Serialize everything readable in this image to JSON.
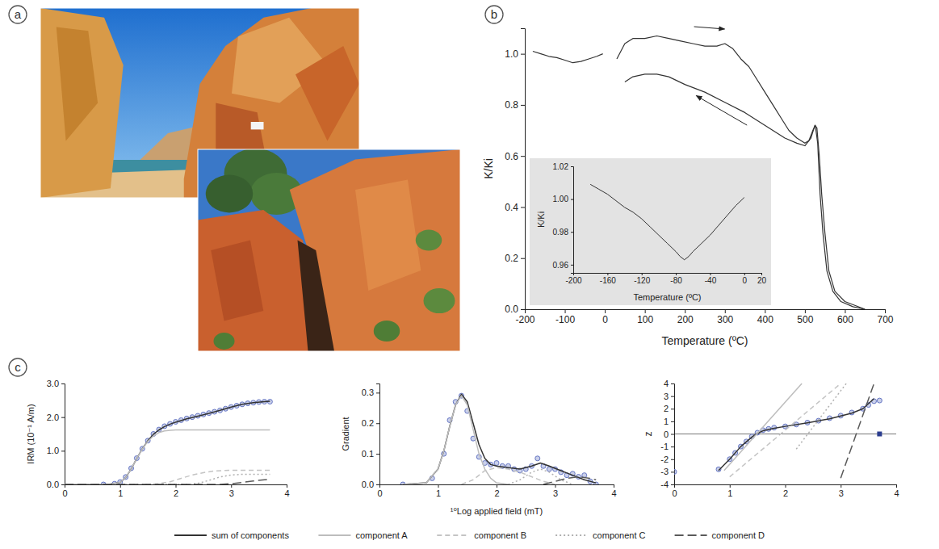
{
  "panel_labels": [
    "a",
    "b",
    "c"
  ],
  "chart_data": [
    {
      "type": "line",
      "x_label": "Temperature (ºC)",
      "y_label": "K/Ki",
      "xlim": [
        -200,
        700
      ],
      "xticks": [
        -200,
        -100,
        0,
        100,
        200,
        300,
        400,
        500,
        600,
        700
      ],
      "ylim": [
        0,
        1.1
      ],
      "yticks": [
        {
          "value": 0,
          "label": "0.0"
        },
        0.2,
        0.4,
        0.6,
        0.8,
        {
          "value": 1,
          "label": "1.0"
        }
      ],
      "series": [
        {
          "color": "#333333",
          "line_style": "solid",
          "x": [
            -180,
            -160,
            -140,
            -120,
            -100,
            -80,
            -60,
            -40,
            -20,
            -5
          ],
          "values": [
            1.01,
            1.0,
            0.99,
            0.985,
            0.975,
            0.965,
            0.97,
            0.98,
            0.99,
            1.0
          ]
        },
        {
          "color": "#333333",
          "line_style": "solid",
          "x": [
            30,
            50,
            70,
            100,
            130,
            160,
            190,
            220,
            250,
            280,
            300,
            320,
            340,
            360,
            380,
            400,
            420,
            440,
            460,
            480,
            500,
            510,
            520,
            526,
            532,
            538,
            545,
            555,
            570,
            590,
            620,
            650
          ],
          "values": [
            0.98,
            1.04,
            1.06,
            1.06,
            1.07,
            1.06,
            1.05,
            1.04,
            1.03,
            1.03,
            1.04,
            1.02,
            0.98,
            0.95,
            0.9,
            0.85,
            0.8,
            0.75,
            0.7,
            0.67,
            0.65,
            0.66,
            0.7,
            0.72,
            0.65,
            0.45,
            0.3,
            0.15,
            0.07,
            0.03,
            0.01,
            0.0
          ]
        },
        {
          "color": "#333333",
          "line_style": "solid",
          "x": [
            50,
            70,
            100,
            130,
            160,
            200,
            250,
            300,
            350,
            400,
            450,
            480,
            500,
            515,
            525,
            530,
            536,
            542,
            550,
            560,
            575,
            600,
            650
          ],
          "values": [
            0.89,
            0.91,
            0.92,
            0.92,
            0.91,
            0.88,
            0.85,
            0.81,
            0.77,
            0.72,
            0.67,
            0.65,
            0.64,
            0.67,
            0.72,
            0.71,
            0.6,
            0.45,
            0.3,
            0.15,
            0.07,
            0.03,
            0.0
          ]
        }
      ],
      "inset": {
        "type": "line",
        "x_label": "Temperature (ºC)",
        "y_label": "K/Ki",
        "xlim": [
          -200,
          20
        ],
        "xticks": [
          -200,
          -160,
          -120,
          -80,
          -40,
          0,
          20
        ],
        "ylim": [
          0.955,
          1.02
        ],
        "yticks": [
          0.96,
          0.98,
          {
            "value": 1,
            "label": "1.00"
          },
          1.02
        ],
        "series": [
          {
            "color": "#333333",
            "line_style": "solid",
            "x": [
              -180,
              -170,
              -160,
              -150,
              -140,
              -130,
              -120,
              -110,
              -100,
              -90,
              -80,
              -75,
              -70,
              -65,
              -60,
              -50,
              -40,
              -30,
              -20,
              -10,
              0
            ],
            "values": [
              1.009,
              1.006,
              1.003,
              0.999,
              0.995,
              0.992,
              0.988,
              0.983,
              0.978,
              0.973,
              0.968,
              0.965,
              0.963,
              0.965,
              0.968,
              0.973,
              0.978,
              0.984,
              0.99,
              0.996,
              1.001
            ]
          }
        ]
      }
    },
    {
      "type": "line",
      "y_label": "IRM (10⁻¹ A/m)",
      "xlim": [
        0,
        4
      ],
      "xticks": [
        0,
        1,
        2,
        3,
        4
      ],
      "ylim": [
        0,
        3
      ],
      "yticks": [
        {
          "value": 0,
          "label": "0.0"
        },
        {
          "value": 1,
          "label": "1.0"
        },
        {
          "value": 2,
          "label": "2.0"
        },
        {
          "value": 3,
          "label": "3.0"
        }
      ],
      "series": [
        {
          "type": "scatter",
          "marker": "circle",
          "color": "#6677c4",
          "x": [
            0.7,
            0.9,
            1.0,
            1.1,
            1.2,
            1.3,
            1.4,
            1.5,
            1.6,
            1.7,
            1.8,
            1.9,
            2.0,
            2.1,
            2.2,
            2.3,
            2.4,
            2.5,
            2.6,
            2.7,
            2.8,
            2.9,
            3.0,
            3.1,
            3.2,
            3.3,
            3.4,
            3.5,
            3.6,
            3.7
          ],
          "values": [
            0.0,
            0.02,
            0.07,
            0.22,
            0.48,
            0.78,
            1.06,
            1.3,
            1.5,
            1.63,
            1.73,
            1.8,
            1.86,
            1.91,
            1.96,
            2.0,
            2.04,
            2.08,
            2.12,
            2.16,
            2.2,
            2.25,
            2.3,
            2.34,
            2.38,
            2.41,
            2.43,
            2.45,
            2.46,
            2.46
          ]
        },
        {
          "type": "line",
          "color": "#333333",
          "line_style": "solid",
          "x": [
            0,
            0.8,
            1.0,
            1.1,
            1.2,
            1.3,
            1.4,
            1.5,
            1.6,
            1.7,
            1.8,
            1.9,
            2.0,
            2.2,
            2.4,
            2.6,
            2.8,
            3.0,
            3.2,
            3.4,
            3.6,
            3.7
          ],
          "values": [
            0,
            0,
            0.06,
            0.2,
            0.46,
            0.77,
            1.06,
            1.3,
            1.49,
            1.62,
            1.72,
            1.79,
            1.85,
            1.95,
            2.03,
            2.11,
            2.2,
            2.3,
            2.38,
            2.43,
            2.46,
            2.47
          ]
        },
        {
          "type": "line",
          "color": "#bdbdbd",
          "line_style": "solid",
          "x": [
            0,
            0.8,
            1.0,
            1.1,
            1.2,
            1.3,
            1.4,
            1.5,
            1.6,
            1.7,
            1.8,
            1.9,
            2.0,
            2.2,
            3.7
          ],
          "values": [
            0,
            0,
            0.06,
            0.2,
            0.46,
            0.77,
            1.05,
            1.28,
            1.44,
            1.54,
            1.59,
            1.61,
            1.62,
            1.62,
            1.62
          ]
        },
        {
          "type": "line",
          "color": "#c4c4c4",
          "line_style": "dashed",
          "x": [
            0,
            1.5,
            1.7,
            1.9,
            2.1,
            2.3,
            2.5,
            2.7,
            3.0,
            3.7
          ],
          "values": [
            0,
            0,
            0.02,
            0.08,
            0.18,
            0.28,
            0.35,
            0.4,
            0.42,
            0.42
          ]
        },
        {
          "type": "line",
          "color": "#b0b0b0",
          "line_style": "dotted",
          "x": [
            0,
            2.2,
            2.4,
            2.6,
            2.8,
            3.0,
            3.2,
            3.7
          ],
          "values": [
            0,
            0,
            0.03,
            0.12,
            0.22,
            0.28,
            0.3,
            0.3
          ]
        },
        {
          "type": "line",
          "color": "#5a5a5a",
          "line_style": "long-dashed",
          "x": [
            0,
            2.8,
            3.0,
            3.2,
            3.4,
            3.6,
            3.7
          ],
          "values": [
            0,
            0,
            0.02,
            0.06,
            0.1,
            0.14,
            0.15
          ]
        }
      ]
    },
    {
      "type": "line",
      "x_label": "¹⁰Log applied field (mT)",
      "y_label": "Gradient",
      "legend": "bottom",
      "xlim": [
        0,
        4
      ],
      "xticks": [
        0,
        1,
        2,
        3,
        4
      ],
      "ylim": [
        0,
        0.33
      ],
      "yticks": [
        {
          "value": 0,
          "label": "0.0"
        },
        0.1,
        0.2,
        0.3
      ],
      "series": [
        {
          "type": "scatter",
          "marker": "circle",
          "color": "#6677c4",
          "x": [
            0.4,
            0.9,
            1.1,
            1.2,
            1.3,
            1.4,
            1.5,
            1.6,
            1.7,
            1.8,
            1.9,
            2.0,
            2.1,
            2.2,
            2.3,
            2.4,
            2.5,
            2.6,
            2.7,
            2.8,
            2.9,
            3.0,
            3.1,
            3.2,
            3.3,
            3.4,
            3.5,
            3.6,
            3.7
          ],
          "values": [
            0.0,
            0.02,
            0.1,
            0.21,
            0.27,
            0.29,
            0.24,
            0.15,
            0.09,
            0.07,
            0.065,
            0.07,
            0.06,
            0.06,
            0.05,
            0.045,
            0.05,
            0.06,
            0.085,
            0.06,
            0.05,
            0.05,
            0.04,
            0.03,
            0.035,
            0.025,
            0.03,
            0.01,
            0.0
          ]
        },
        {
          "type": "line",
          "name": "sum of components",
          "color": "#333333",
          "line_style": "solid",
          "x": [
            0.4,
            0.8,
            1.0,
            1.1,
            1.2,
            1.3,
            1.4,
            1.5,
            1.6,
            1.7,
            1.8,
            1.9,
            2.0,
            2.2,
            2.4,
            2.6,
            2.75,
            2.9,
            3.1,
            3.3,
            3.5,
            3.7
          ],
          "values": [
            0,
            0.005,
            0.05,
            0.11,
            0.19,
            0.26,
            0.295,
            0.27,
            0.2,
            0.13,
            0.085,
            0.065,
            0.06,
            0.055,
            0.05,
            0.06,
            0.07,
            0.06,
            0.045,
            0.03,
            0.015,
            0.005
          ]
        },
        {
          "type": "line",
          "name": "component A",
          "color": "#bdbdbd",
          "line_style": "solid",
          "x": [
            0.4,
            0.8,
            1.0,
            1.1,
            1.2,
            1.3,
            1.4,
            1.5,
            1.6,
            1.7,
            1.8,
            1.9,
            2.0,
            2.2
          ],
          "values": [
            0,
            0.005,
            0.05,
            0.11,
            0.19,
            0.26,
            0.29,
            0.26,
            0.18,
            0.1,
            0.05,
            0.02,
            0.005,
            0
          ]
        },
        {
          "type": "line",
          "name": "component B",
          "color": "#c4c4c4",
          "line_style": "dashed",
          "x": [
            1.4,
            1.6,
            1.8,
            2.0,
            2.2,
            2.4,
            2.6,
            2.8,
            3.0
          ],
          "values": [
            0,
            0.015,
            0.045,
            0.055,
            0.05,
            0.04,
            0.025,
            0.01,
            0
          ]
        },
        {
          "type": "line",
          "name": "component C",
          "color": "#b0b0b0",
          "line_style": "dotted",
          "x": [
            2.2,
            2.4,
            2.6,
            2.75,
            2.9,
            3.1,
            3.3
          ],
          "values": [
            0,
            0.015,
            0.04,
            0.05,
            0.04,
            0.015,
            0
          ]
        },
        {
          "type": "line",
          "name": "component D",
          "color": "#5a5a5a",
          "line_style": "long-dashed",
          "x": [
            2.8,
            3.0,
            3.2,
            3.4,
            3.6,
            3.7
          ],
          "values": [
            0,
            0.01,
            0.02,
            0.025,
            0.02,
            0.015
          ]
        }
      ]
    },
    {
      "type": "line",
      "y_label": "z",
      "xlim": [
        0,
        4
      ],
      "xticks": [
        0,
        1,
        2,
        3,
        4
      ],
      "ylim": [
        -4,
        4
      ],
      "yticks": [
        -4,
        -3,
        -2,
        -1,
        0,
        1,
        2,
        3,
        4
      ],
      "series": [
        {
          "type": "scatter",
          "marker": "circle",
          "color": "#6677c4",
          "x": [
            0.0,
            0.8,
            1.0,
            1.1,
            1.2,
            1.3,
            1.4,
            1.5,
            1.6,
            1.7,
            1.8,
            2.0,
            2.2,
            2.4,
            2.6,
            2.8,
            3.0,
            3.2,
            3.4,
            3.5,
            3.6,
            3.7
          ],
          "values": [
            -3.0,
            -2.8,
            -2.0,
            -1.5,
            -1.0,
            -0.6,
            -0.2,
            0.1,
            0.3,
            0.4,
            0.5,
            0.6,
            0.75,
            0.9,
            1.05,
            1.25,
            1.45,
            1.7,
            2.0,
            2.3,
            2.6,
            2.65
          ]
        },
        {
          "type": "scatter",
          "marker": "square",
          "color": "#2b3d8f",
          "x": [
            3.7
          ],
          "values": [
            0.0
          ]
        },
        {
          "type": "line",
          "color": "#333333",
          "line_style": "solid",
          "x": [
            0.8,
            1.0,
            1.2,
            1.4,
            1.5,
            1.6,
            1.8,
            2.0,
            2.4,
            2.8,
            3.2,
            3.4,
            3.5,
            3.6
          ],
          "values": [
            -2.9,
            -2.0,
            -1.0,
            -0.25,
            0.05,
            0.25,
            0.45,
            0.6,
            0.88,
            1.2,
            1.65,
            2.0,
            2.4,
            2.8
          ]
        },
        {
          "type": "line",
          "color": "#bdbdbd",
          "line_style": "solid",
          "x": [
            0.9,
            2.3
          ],
          "values": [
            -2.9,
            4
          ]
        },
        {
          "type": "line",
          "color": "#c4c4c4",
          "line_style": "dashed",
          "x": [
            1.0,
            3.0
          ],
          "values": [
            -3.4,
            4
          ]
        },
        {
          "type": "line",
          "color": "#b0b0b0",
          "line_style": "dotted",
          "x": [
            2.2,
            3.1
          ],
          "values": [
            -1.2,
            4
          ]
        },
        {
          "type": "line",
          "color": "#5a5a5a",
          "line_style": "long-dashed",
          "x": [
            3.0,
            3.6
          ],
          "values": [
            -3.5,
            4
          ]
        }
      ]
    }
  ]
}
